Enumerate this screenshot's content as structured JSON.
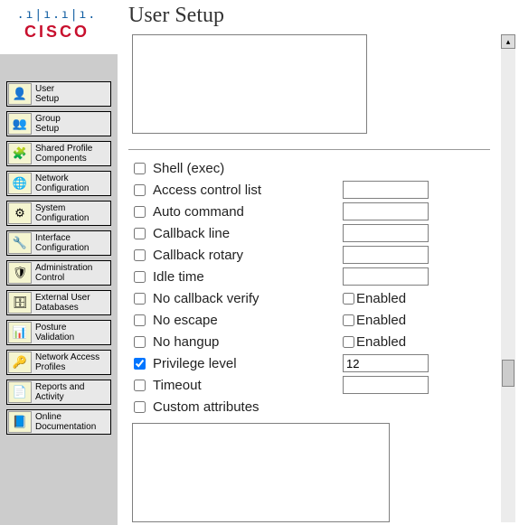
{
  "brand": {
    "bars": ".ı|ı.ı|ı.",
    "name": "CISCO"
  },
  "page_title": "User Setup",
  "sidebar": {
    "items": [
      {
        "label": "User\nSetup",
        "icon": "👤"
      },
      {
        "label": "Group\nSetup",
        "icon": "👥"
      },
      {
        "label": "Shared Profile\nComponents",
        "icon": "🧩"
      },
      {
        "label": "Network\nConfiguration",
        "icon": "🌐"
      },
      {
        "label": "System\nConfiguration",
        "icon": "⚙"
      },
      {
        "label": "Interface\nConfiguration",
        "icon": "🔧"
      },
      {
        "label": "Administration\nControl",
        "icon": "🛡"
      },
      {
        "label": "External User\nDatabases",
        "icon": "🗄"
      },
      {
        "label": "Posture\nValidation",
        "icon": "📊"
      },
      {
        "label": "Network Access\nProfiles",
        "icon": "🔑"
      },
      {
        "label": "Reports and\nActivity",
        "icon": "📄"
      },
      {
        "label": "Online\nDocumentation",
        "icon": "📘"
      }
    ]
  },
  "form": {
    "rows": [
      {
        "label": "Shell (exec)",
        "type": "plain",
        "checked": false
      },
      {
        "label": "Access control list",
        "type": "text",
        "checked": false,
        "value": ""
      },
      {
        "label": "Auto command",
        "type": "text",
        "checked": false,
        "value": ""
      },
      {
        "label": "Callback line",
        "type": "text",
        "checked": false,
        "value": ""
      },
      {
        "label": "Callback rotary",
        "type": "text",
        "checked": false,
        "value": ""
      },
      {
        "label": "Idle time",
        "type": "text",
        "checked": false,
        "value": ""
      },
      {
        "label": "No callback verify",
        "type": "enabled",
        "checked": false,
        "enabled_label": "Enabled",
        "enabled_checked": false
      },
      {
        "label": "No escape",
        "type": "enabled",
        "checked": false,
        "enabled_label": "Enabled",
        "enabled_checked": false
      },
      {
        "label": "No hangup",
        "type": "enabled",
        "checked": false,
        "enabled_label": "Enabled",
        "enabled_checked": false
      },
      {
        "label": "Privilege level",
        "type": "text",
        "checked": true,
        "value": "12"
      },
      {
        "label": "Timeout",
        "type": "text",
        "checked": false,
        "value": ""
      },
      {
        "label": "Custom attributes",
        "type": "plain",
        "checked": false
      }
    ]
  }
}
